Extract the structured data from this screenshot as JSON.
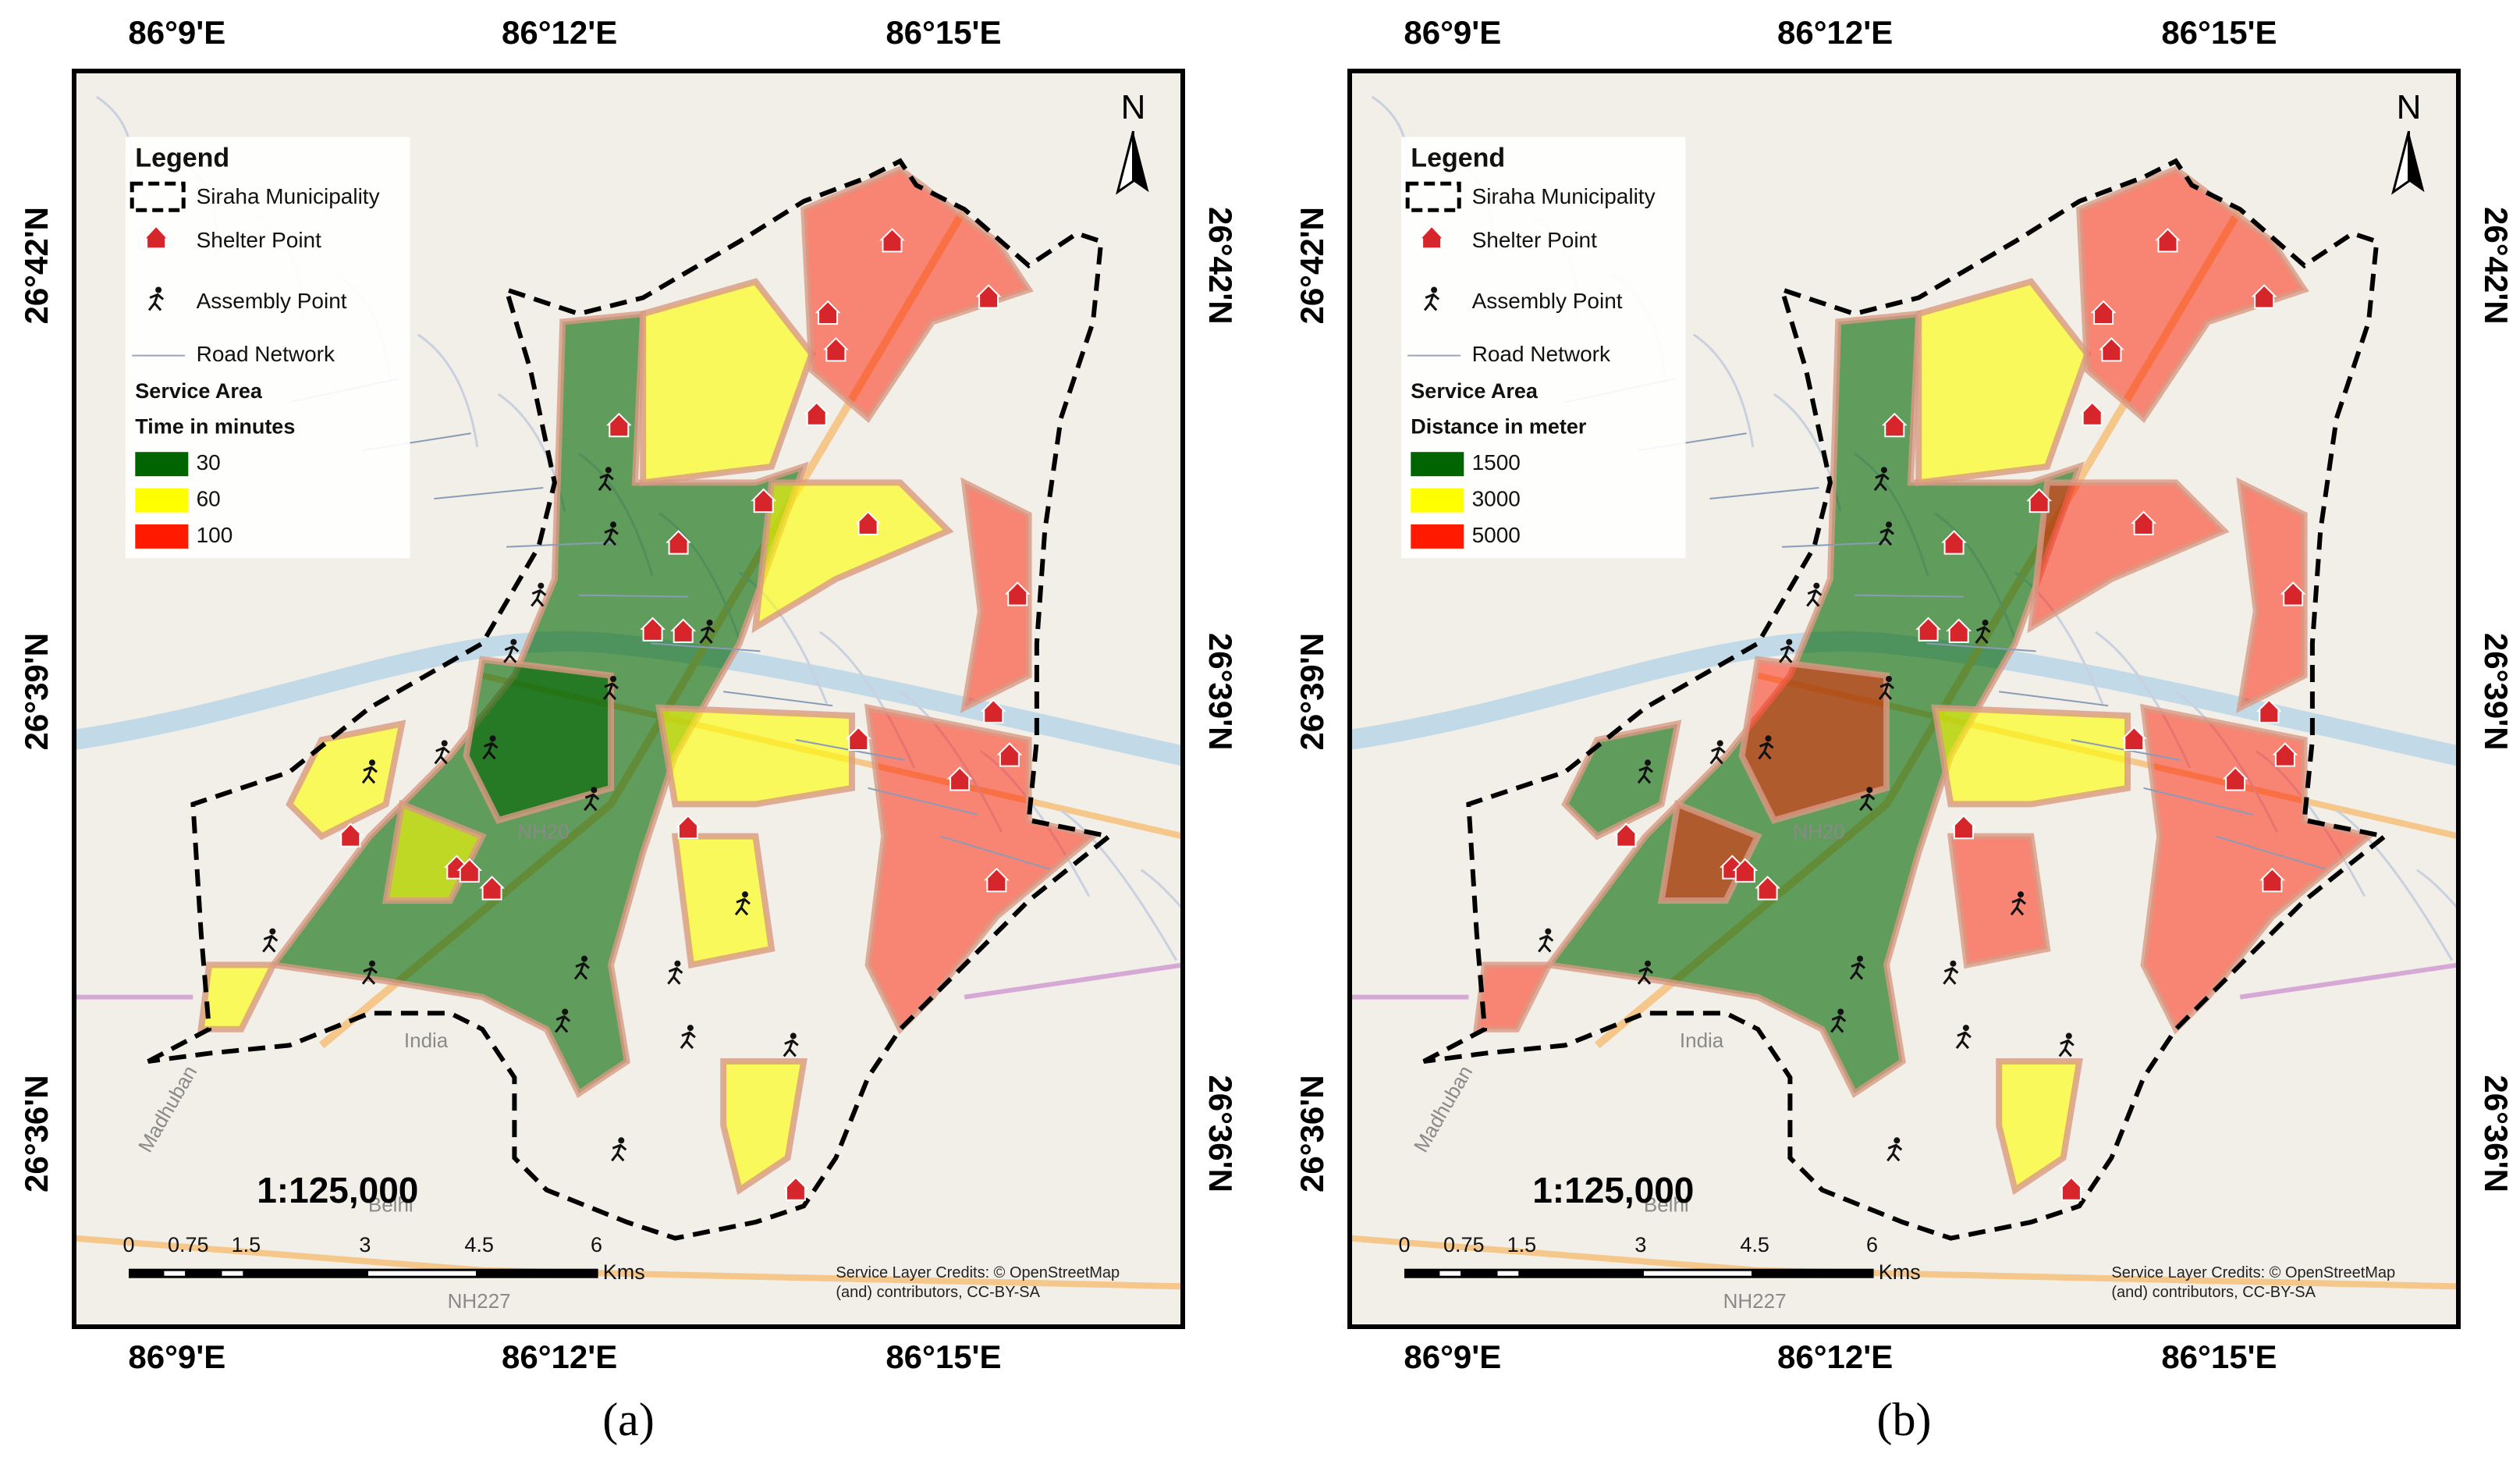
{
  "maps": [
    {
      "panel_label": "(a)",
      "top_labels": [
        "86°9'E",
        "86°12'E",
        "86°15'E"
      ],
      "bottom_labels": [
        "86°9'E",
        "86°12'E",
        "86°15'E"
      ],
      "left_labels": [
        "26°42'N",
        "26°39'N",
        "26°36'N"
      ],
      "right_labels": [
        "26°42'N",
        "26°39'N",
        "26°36'N"
      ],
      "north": "N",
      "legend": {
        "title": "Legend",
        "boundary": "Siraha Municipality",
        "shelter": "Shelter Point",
        "assembly": "Assembly Point",
        "road": "Road Network",
        "service_area": "Service Area",
        "subtitle": "Time in minutes",
        "classes": [
          {
            "label": "30",
            "color": "#006400"
          },
          {
            "label": "60",
            "color": "#ffff00"
          },
          {
            "label": "100",
            "color": "#ff1a00"
          }
        ]
      },
      "scale": "1:125,000",
      "scale_bar": {
        "ticks": [
          "0",
          "0.75",
          "1.5",
          "3",
          "4.5",
          "6"
        ],
        "unit": "Kms"
      },
      "credits": [
        "Service Layer Credits: © OpenStreetMap",
        "(and) contributors, CC-BY-SA"
      ],
      "basemap_labels": [
        "NH20",
        "India",
        "Belhi",
        "NH227",
        "Madhuban"
      ]
    },
    {
      "panel_label": "(b)",
      "top_labels": [
        "86°9'E",
        "86°12'E",
        "86°15'E"
      ],
      "bottom_labels": [
        "86°9'E",
        "86°12'E",
        "86°15'E"
      ],
      "left_labels": [
        "26°42'N",
        "26°39'N",
        "26°36'N"
      ],
      "right_labels": [
        "26°42'N",
        "26°39'N",
        "26°36'N"
      ],
      "north": "N",
      "legend": {
        "title": "Legend",
        "boundary": "Siraha Municipality",
        "shelter": "Shelter Point",
        "assembly": "Assembly Point",
        "road": "Road Network",
        "service_area": "Service Area",
        "subtitle": "Distance in meter",
        "classes": [
          {
            "label": "1500",
            "color": "#006400"
          },
          {
            "label": "3000",
            "color": "#ffff00"
          },
          {
            "label": "5000",
            "color": "#ff1a00"
          }
        ]
      },
      "scale": "1:125,000",
      "scale_bar": {
        "ticks": [
          "0",
          "0.75",
          "1.5",
          "3",
          "4.5",
          "6"
        ],
        "unit": "Kms"
      },
      "credits": [
        "Service Layer Credits: © OpenStreetMap",
        "(and) contributors, CC-BY-SA"
      ],
      "basemap_labels": [
        "NH20",
        "India",
        "Belhi",
        "NH227",
        "Madhuban"
      ]
    }
  ]
}
